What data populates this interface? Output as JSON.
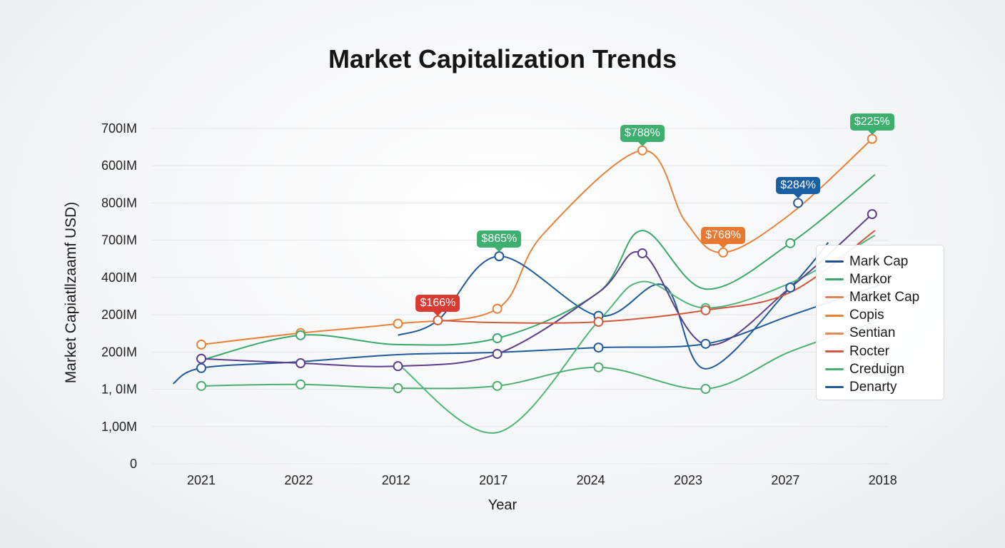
{
  "chart_data": {
    "type": "line",
    "title": "Market Capitalization Trends",
    "xlabel": "Year",
    "ylabel": "Market Capiatllzaamf USD)",
    "categories": [
      "2021",
      "2022",
      "2012",
      "2017",
      "2024",
      "2023",
      "2027",
      "2018"
    ],
    "y_tick_labels": [
      "0",
      "1,00M",
      "1, 0IM",
      "200IM",
      "200IM",
      "400IM",
      "700IM",
      "800IM",
      "600IM",
      "700IM"
    ],
    "ylim": [
      0,
      900
    ],
    "grid": true,
    "legend_position": "right",
    "legend": [
      {
        "label": "Mark Cap",
        "color": "#1f4e8c"
      },
      {
        "label": "Markor",
        "color": "#3aa86c"
      },
      {
        "label": "Market Cap",
        "color": "#e0845a"
      },
      {
        "label": "Copis",
        "color": "#e8823a"
      },
      {
        "label": "Sentian",
        "color": "#e28b55"
      },
      {
        "label": "Rocter",
        "color": "#d0583c"
      },
      {
        "label": "Creduign",
        "color": "#4cae72"
      },
      {
        "label": "Denarty",
        "color": "#1f5a99"
      }
    ],
    "series": [
      {
        "color": "#e8823a",
        "points": [
          [
            0,
            320,
            1
          ],
          [
            1.02,
            351,
            1
          ],
          [
            2.02,
            376,
            1
          ],
          [
            3.04,
            416,
            1
          ],
          [
            3.5,
            613,
            0
          ],
          [
            4.53,
            841,
            1
          ],
          [
            4.97,
            651,
            0
          ],
          [
            5.36,
            567,
            1
          ],
          [
            6.05,
            670,
            0
          ],
          [
            6.89,
            872,
            1
          ]
        ]
      },
      {
        "color": "#1f5a99",
        "points": [
          [
            -0.29,
            215,
            0
          ],
          [
            0,
            257,
            1
          ],
          [
            1.02,
            274,
            0
          ],
          [
            2.02,
            293,
            0
          ],
          [
            3.04,
            299,
            0
          ],
          [
            4.08,
            312,
            1
          ],
          [
            5.18,
            322,
            1
          ],
          [
            6.05,
            398,
            0
          ],
          [
            6.96,
            479,
            0
          ]
        ]
      },
      {
        "color": "#1f5a99",
        "points": [
          [
            2.02,
            345,
            0
          ],
          [
            2.43,
            385,
            0
          ],
          [
            3.06,
            557,
            1
          ],
          [
            4.08,
            397,
            1
          ],
          [
            4.75,
            479,
            0
          ],
          [
            5.18,
            255,
            0
          ],
          [
            6.05,
            473,
            1
          ],
          [
            6.44,
            594,
            0
          ]
        ]
      },
      {
        "color": "#4cae72",
        "points": [
          [
            0,
            209,
            1
          ],
          [
            1.02,
            213,
            1
          ],
          [
            2.02,
            203,
            1
          ],
          [
            3.04,
            209,
            1
          ],
          [
            4.08,
            259,
            1
          ],
          [
            5.18,
            201,
            1
          ],
          [
            6.05,
            301,
            0
          ],
          [
            6.96,
            383,
            0
          ]
        ]
      },
      {
        "color": "#3aa86c",
        "points": [
          [
            0,
            278,
            0
          ],
          [
            1.02,
            345,
            1
          ],
          [
            2.02,
            320,
            0
          ],
          [
            3.04,
            337,
            1
          ],
          [
            4.08,
            460,
            0
          ],
          [
            4.53,
            626,
            0
          ],
          [
            5.18,
            469,
            0
          ],
          [
            6.05,
            592,
            1
          ],
          [
            6.92,
            776,
            0
          ]
        ]
      },
      {
        "color": "#52b57a",
        "points": [
          [
            2.02,
            268,
            0
          ],
          [
            3.04,
            84,
            0
          ],
          [
            4.08,
            383,
            0
          ],
          [
            4.53,
            489,
            0
          ],
          [
            5.18,
            418,
            1
          ],
          [
            6.05,
            485,
            0
          ],
          [
            6.92,
            613,
            0
          ]
        ]
      },
      {
        "color": "#5b3f8c",
        "points": [
          [
            0,
            282,
            1
          ],
          [
            1.02,
            270,
            1
          ],
          [
            2.02,
            262,
            1
          ],
          [
            3.04,
            295,
            1
          ],
          [
            4.08,
            460,
            0
          ],
          [
            4.53,
            565,
            1
          ],
          [
            5.18,
            320,
            0
          ],
          [
            6.05,
            473,
            0
          ],
          [
            6.89,
            670,
            1
          ]
        ]
      },
      {
        "color": "#d0583c",
        "points": [
          [
            2.43,
            385,
            1
          ],
          [
            3.06,
            379,
            0
          ],
          [
            4.08,
            381,
            1
          ],
          [
            5.18,
            412,
            1
          ],
          [
            6.05,
            460,
            0
          ],
          [
            6.92,
            626,
            0
          ]
        ]
      },
      {
        "color": "#1f5a99",
        "points": [
          [
            6.13,
            700,
            1
          ]
        ]
      }
    ],
    "annotations": [
      {
        "text": "$166%",
        "x": 2.43,
        "y": 385,
        "color": "#d93a32"
      },
      {
        "text": "$865%",
        "x": 3.06,
        "y": 557,
        "color": "#3db070"
      },
      {
        "text": "$788%",
        "x": 4.53,
        "y": 841,
        "color": "#3db070"
      },
      {
        "text": "$768%",
        "x": 5.36,
        "y": 567,
        "color": "#e8782f"
      },
      {
        "text": "$284%",
        "x": 6.13,
        "y": 700,
        "color": "#1b5fa3"
      },
      {
        "text": "$225%",
        "x": 6.89,
        "y": 872,
        "color": "#3db070"
      }
    ]
  }
}
